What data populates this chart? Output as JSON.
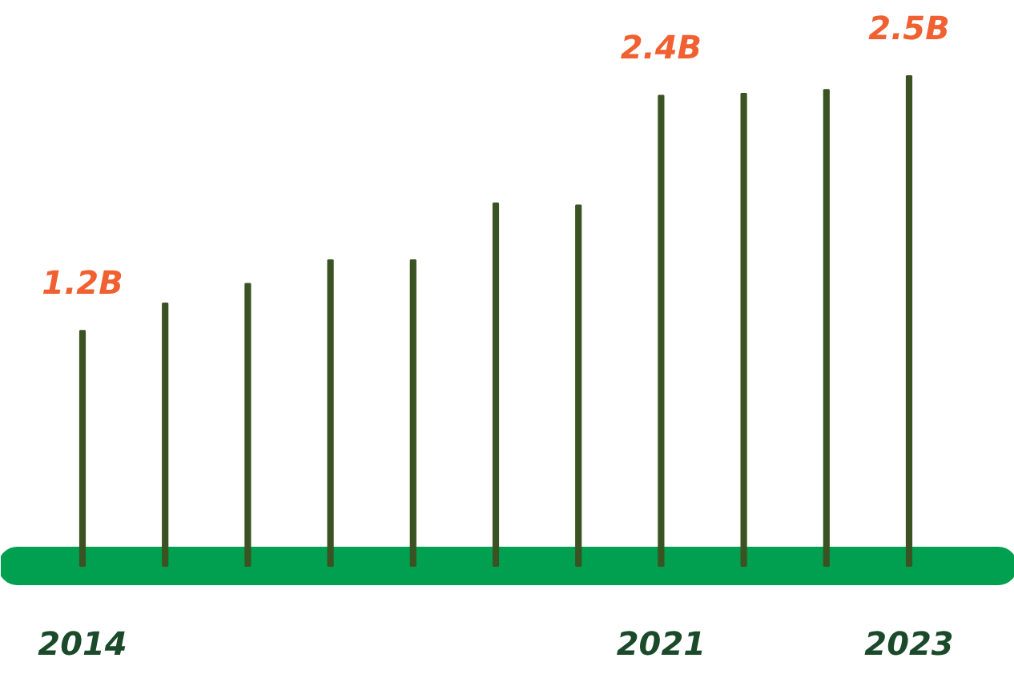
{
  "chart_data": {
    "type": "bar",
    "categories": [
      "2014",
      null,
      null,
      null,
      null,
      null,
      null,
      "2021",
      null,
      null,
      "2023"
    ],
    "values": [
      1.2,
      1.34,
      1.44,
      1.56,
      1.56,
      1.85,
      1.84,
      2.4,
      2.41,
      2.43,
      2.5
    ],
    "value_labels": [
      "1.2B",
      null,
      null,
      null,
      null,
      null,
      null,
      "2.4B",
      null,
      null,
      "2.5B"
    ],
    "color": "#3b5323",
    "grid": false
  }
}
